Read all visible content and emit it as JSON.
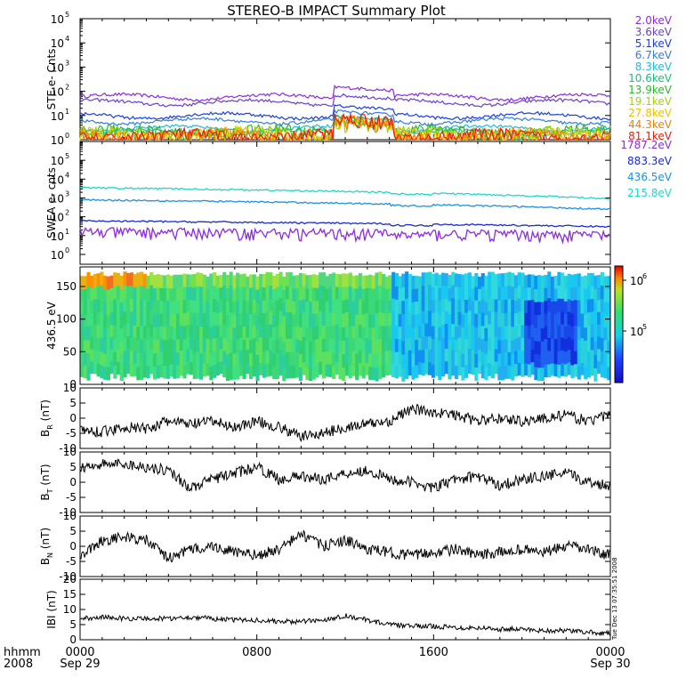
{
  "title": "STEREO-B IMPACT Summary Plot",
  "footer": {
    "hhmm_label": "hhmm",
    "year_label": "2008",
    "ticks": [
      "0000",
      "0800",
      "1600",
      "0000"
    ],
    "dates": [
      "Sep 29",
      "",
      "",
      "Sep 30"
    ],
    "stamp": "Tue Dec 13 07:35:51 2008"
  },
  "chart_data": [
    {
      "type": "line",
      "panel": "STE",
      "ylabel": "STE e- Cnts",
      "yscale": "log",
      "ylim": [
        1,
        100000
      ],
      "ytick_exponents": [
        "0",
        "1",
        "2",
        "3",
        "4",
        "5"
      ],
      "xlim_hours": [
        0,
        24
      ],
      "series": [
        {
          "name": "2.0keV",
          "color": "#8a2be2",
          "level": 60,
          "event_level": 150
        },
        {
          "name": "3.6keV",
          "color": "#6a3fd0",
          "level": 35,
          "event_level": 70
        },
        {
          "name": "5.1keV",
          "color": "#1a3ee0",
          "level": 10,
          "event_level": 25
        },
        {
          "name": "6.7keV",
          "color": "#2f7de0",
          "level": 6,
          "event_level": 15
        },
        {
          "name": "8.3keV",
          "color": "#1fb9e0",
          "level": 3,
          "event_level": 9
        },
        {
          "name": "10.6keV",
          "color": "#10c080",
          "level": 2,
          "event_level": 6
        },
        {
          "name": "13.9keV",
          "color": "#2db82d",
          "level": 1.6,
          "event_level": 5
        },
        {
          "name": "19.1keV",
          "color": "#a6d400",
          "level": 1.3,
          "event_level": 4
        },
        {
          "name": "27.8keV",
          "color": "#f0c000",
          "level": 1.2,
          "event_level": 4
        },
        {
          "name": "44.3keV",
          "color": "#f08000",
          "level": 1.1,
          "event_level": 5
        },
        {
          "name": "81.1keV",
          "color": "#e02010",
          "level": 1.05,
          "event_level": 6
        }
      ],
      "event_window_hours": [
        11.5,
        14.2
      ]
    },
    {
      "type": "line",
      "panel": "SWEA",
      "ylabel": "SWEA e- cnts",
      "yscale": "log",
      "ylim": [
        0.3,
        1000000
      ],
      "ytick_exponents": [
        "0",
        "1",
        "2",
        "3",
        "4",
        "5"
      ],
      "xlim_hours": [
        0,
        24
      ],
      "series": [
        {
          "name": "1787.2eV",
          "color": "#8a2be2",
          "start": 15,
          "end": 10
        },
        {
          "name": "883.3eV",
          "color": "#1a2bd0",
          "start": 60,
          "end": 30
        },
        {
          "name": "436.5eV",
          "color": "#1f8fe0",
          "start": 800,
          "end": 250
        },
        {
          "name": "215.8eV",
          "color": "#20d8c8",
          "start": 3500,
          "end": 900
        }
      ]
    },
    {
      "type": "heatmap",
      "panel": "PAD",
      "ylabel": "436.5 eV",
      "ylim": [
        0,
        180
      ],
      "yticks": [
        "0",
        "50",
        "100",
        "150"
      ],
      "colorbar_ticks": [
        "10",
        "10"
      ],
      "colorbar_exponents": [
        "6",
        "5"
      ],
      "xlim_hours": [
        0,
        24
      ]
    },
    {
      "type": "line",
      "panel": "BR",
      "ylabel": "B",
      "ylabel_sub": "R",
      "ylabel_unit": "(nT)",
      "ylim": [
        -10,
        10
      ],
      "yticks": [
        "10",
        "5",
        "0",
        "-5",
        "-10"
      ],
      "x": [
        0,
        1,
        2,
        3,
        4,
        5,
        6,
        7,
        8,
        9,
        10,
        11,
        12,
        13,
        14,
        15,
        16,
        17,
        18,
        19,
        20,
        21,
        22,
        23,
        24
      ],
      "y": [
        -4,
        -4.5,
        -3,
        -3.5,
        -1,
        -2,
        -1,
        -3,
        -1,
        -3,
        -6,
        -5,
        -3,
        -2,
        -1,
        3,
        2,
        1,
        -1,
        0,
        -1,
        0,
        1,
        -1,
        1
      ]
    },
    {
      "type": "line",
      "panel": "BT",
      "ylabel": "B",
      "ylabel_sub": "T",
      "ylabel_unit": "(nT)",
      "ylim": [
        -10,
        10
      ],
      "yticks": [
        "10",
        "5",
        "0",
        "-5",
        "-10"
      ],
      "x": [
        0,
        1,
        2,
        3,
        4,
        5,
        6,
        7,
        8,
        9,
        10,
        11,
        12,
        13,
        14,
        15,
        16,
        17,
        18,
        19,
        20,
        21,
        22,
        23,
        24
      ],
      "y": [
        5,
        6,
        6,
        5,
        4,
        -2,
        1,
        3,
        5,
        1,
        2,
        1,
        3,
        4,
        1,
        0,
        -2,
        1,
        2,
        -1,
        1,
        2,
        3,
        0,
        -1
      ]
    },
    {
      "type": "line",
      "panel": "BN",
      "ylabel": "B",
      "ylabel_sub": "N",
      "ylabel_unit": "(nT)",
      "ylim": [
        -10,
        10
      ],
      "yticks": [
        "10",
        "5",
        "0",
        "-5",
        "-10"
      ],
      "x": [
        0,
        1,
        2,
        3,
        4,
        5,
        6,
        7,
        8,
        9,
        10,
        11,
        12,
        13,
        14,
        15,
        16,
        17,
        18,
        19,
        20,
        21,
        22,
        23,
        24
      ],
      "y": [
        -3,
        2,
        3,
        2,
        -4,
        -1,
        0,
        -2,
        -3,
        -1,
        4,
        0,
        2,
        -1,
        -2,
        -3,
        -2,
        -1,
        -3,
        -2,
        -1,
        -2,
        0,
        -1,
        -3
      ]
    },
    {
      "type": "line",
      "panel": "B",
      "ylabel": "IBI (nT)",
      "ylim": [
        0,
        20
      ],
      "yticks": [
        "20",
        "15",
        "10",
        "5",
        "0"
      ],
      "x": [
        0,
        1,
        2,
        3,
        4,
        5,
        6,
        7,
        8,
        9,
        10,
        11,
        12,
        13,
        14,
        15,
        16,
        17,
        18,
        19,
        20,
        21,
        22,
        23,
        24
      ],
      "y": [
        7,
        7.5,
        7,
        7,
        7,
        7.5,
        7,
        6.5,
        6.5,
        6,
        6,
        6.5,
        8,
        6.5,
        5,
        4.5,
        4.5,
        4,
        4,
        3.5,
        3.5,
        3,
        3,
        2.5,
        2
      ]
    }
  ]
}
